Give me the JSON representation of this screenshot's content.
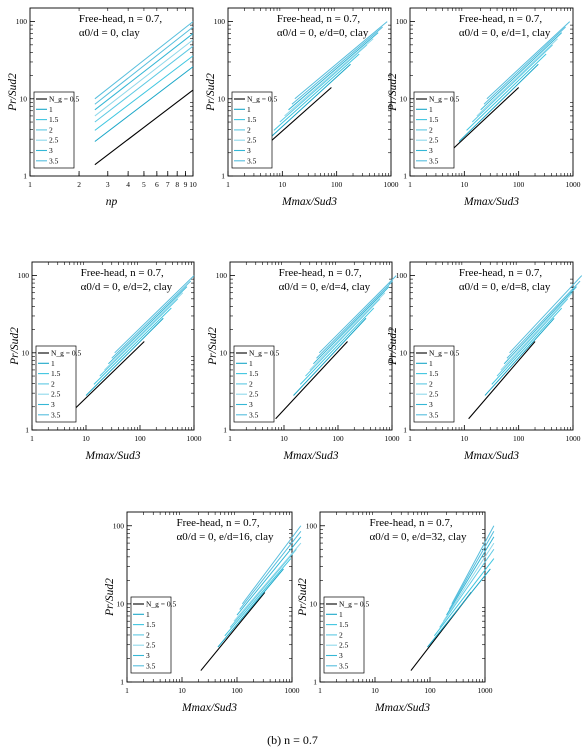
{
  "caption": "(b)   n = 0.7",
  "colors": {
    "axes": "#000000",
    "series": [
      "#000000",
      "#1aa7c8",
      "#3ec6e0",
      "#5dc9e3",
      "#8fd8ea",
      "#35b7d6",
      "#56bedd"
    ]
  },
  "legend_labels": [
    "N_g = 0.5",
    "1",
    "1.5",
    "2",
    "2.5",
    "3",
    "3.5"
  ],
  "chart_data": [
    {
      "type": "line",
      "xscale": "log",
      "yscale": "log",
      "xlim": [
        1,
        10
      ],
      "ylim": [
        1,
        150
      ],
      "xticks": [
        "1",
        "2",
        "3",
        "4",
        "5",
        "6",
        "7",
        "8",
        "9",
        "10"
      ],
      "yticks": [
        "1",
        "10",
        "100"
      ],
      "annotation": [
        "Free-head, n = 0.7,",
        "α0/d = 0, clay"
      ],
      "xlabel": "np",
      "ylabel": "Pr/Sud2",
      "legend": "left-middle",
      "series": [
        {
          "name": "0.5",
          "x": [
            2.5,
            10
          ],
          "y": [
            1.4,
            13
          ]
        },
        {
          "name": "1",
          "x": [
            2.5,
            10
          ],
          "y": [
            2.8,
            26
          ]
        },
        {
          "name": "1.5",
          "x": [
            2.5,
            10
          ],
          "y": [
            3.9,
            36
          ]
        },
        {
          "name": "2",
          "x": [
            2.5,
            10
          ],
          "y": [
            5.0,
            48
          ]
        },
        {
          "name": "2.5",
          "x": [
            2.5,
            10
          ],
          "y": [
            6.0,
            58
          ]
        },
        {
          "name": "3",
          "x": [
            2.5,
            10
          ],
          "y": [
            7.2,
            70
          ]
        },
        {
          "name": "3.5",
          "x": [
            2.5,
            10
          ],
          "y": [
            8.5,
            85
          ]
        },
        {
          "name": "",
          "x": [
            2.5,
            10
          ],
          "y": [
            10,
            100
          ]
        }
      ]
    },
    {
      "type": "line",
      "xscale": "log",
      "yscale": "log",
      "xlim": [
        1,
        1000
      ],
      "ylim": [
        1,
        150
      ],
      "xticks": [
        "1",
        "10",
        "100",
        "1000"
      ],
      "yticks": [
        "1",
        "10",
        "100"
      ],
      "annotation": [
        "Free-head, n = 0.7,",
        "α0/d = 0, e/d=0, clay"
      ],
      "xlabel": "Mmax/Sud3",
      "ylabel": "Pr/Sud2",
      "legend": "left-middle",
      "series": [
        {
          "name": "0.5",
          "x": [
            2,
            80
          ],
          "y": [
            1.4,
            14
          ]
        },
        {
          "name": "1",
          "x": [
            5,
            180
          ],
          "y": [
            2.8,
            28
          ]
        },
        {
          "name": "1.5",
          "x": [
            7,
            260
          ],
          "y": [
            3.9,
            38
          ]
        },
        {
          "name": "2",
          "x": [
            9,
            360
          ],
          "y": [
            5.0,
            50
          ]
        },
        {
          "name": "2.5",
          "x": [
            11,
            470
          ],
          "y": [
            6.0,
            60
          ]
        },
        {
          "name": "3",
          "x": [
            13,
            580
          ],
          "y": [
            7.2,
            72
          ]
        },
        {
          "name": "3.5",
          "x": [
            15,
            700
          ],
          "y": [
            8.5,
            85
          ]
        },
        {
          "name": "",
          "x": [
            17,
            850
          ],
          "y": [
            10,
            100
          ]
        }
      ]
    },
    {
      "type": "line",
      "xscale": "log",
      "yscale": "log",
      "xlim": [
        1,
        1000
      ],
      "ylim": [
        1,
        150
      ],
      "xticks": [
        "1",
        "10",
        "100",
        "1000"
      ],
      "yticks": [
        "1",
        "10",
        "100"
      ],
      "annotation": [
        "Free-head, n = 0.7,",
        "α0/d = 0, e/d=1, clay"
      ],
      "xlabel": "Mmax/Sud3",
      "ylabel": "Pr/Sud2",
      "legend": "left-middle",
      "series": [
        {
          "name": "0.5",
          "x": [
            3,
            100
          ],
          "y": [
            1.4,
            14
          ]
        },
        {
          "name": "1",
          "x": [
            8,
            230
          ],
          "y": [
            2.8,
            28
          ]
        },
        {
          "name": "1.5",
          "x": [
            11,
            320
          ],
          "y": [
            3.9,
            38
          ]
        },
        {
          "name": "2",
          "x": [
            14,
            420
          ],
          "y": [
            5.0,
            50
          ]
        },
        {
          "name": "2.5",
          "x": [
            17,
            520
          ],
          "y": [
            6.0,
            60
          ]
        },
        {
          "name": "3",
          "x": [
            20,
            620
          ],
          "y": [
            7.2,
            72
          ]
        },
        {
          "name": "3.5",
          "x": [
            23,
            730
          ],
          "y": [
            8.5,
            85
          ]
        },
        {
          "name": "",
          "x": [
            26,
            870
          ],
          "y": [
            10,
            100
          ]
        }
      ]
    },
    {
      "type": "line",
      "xscale": "log",
      "yscale": "log",
      "xlim": [
        1,
        1000
      ],
      "ylim": [
        1,
        150
      ],
      "xticks": [
        "1",
        "10",
        "100",
        "1000"
      ],
      "yticks": [
        "1",
        "10",
        "100"
      ],
      "annotation": [
        "Free-head, n = 0.7,",
        "α0/d = 0, e/d=2, clay"
      ],
      "xlabel": "Mmax/Sud3",
      "ylabel": "Pr/Sud2",
      "legend": "left-middle",
      "series": [
        {
          "name": "0.5",
          "x": [
            4,
            120
          ],
          "y": [
            1.4,
            14
          ]
        },
        {
          "name": "1",
          "x": [
            10,
            270
          ],
          "y": [
            2.8,
            28
          ]
        },
        {
          "name": "1.5",
          "x": [
            14,
            380
          ],
          "y": [
            3.9,
            38
          ]
        },
        {
          "name": "2",
          "x": [
            18,
            500
          ],
          "y": [
            5.0,
            50
          ]
        },
        {
          "name": "2.5",
          "x": [
            22,
            620
          ],
          "y": [
            6.0,
            60
          ]
        },
        {
          "name": "3",
          "x": [
            26,
            740
          ],
          "y": [
            7.2,
            72
          ]
        },
        {
          "name": "3.5",
          "x": [
            30,
            870
          ],
          "y": [
            8.5,
            85
          ]
        },
        {
          "name": "",
          "x": [
            34,
            1000
          ],
          "y": [
            10,
            100
          ]
        }
      ]
    },
    {
      "type": "line",
      "xscale": "log",
      "yscale": "log",
      "xlim": [
        1,
        1000
      ],
      "ylim": [
        1,
        150
      ],
      "xticks": [
        "1",
        "10",
        "100",
        "1000"
      ],
      "yticks": [
        "1",
        "10",
        "100"
      ],
      "annotation": [
        "Free-head, n = 0.7,",
        "α0/d = 0, e/d=4, clay"
      ],
      "xlabel": "Mmax/Sud3",
      "ylabel": "Pr/Sud2",
      "legend": "left-middle",
      "series": [
        {
          "name": "0.5",
          "x": [
            7,
            150
          ],
          "y": [
            1.4,
            14
          ]
        },
        {
          "name": "1",
          "x": [
            15,
            330
          ],
          "y": [
            2.8,
            28
          ]
        },
        {
          "name": "1.5",
          "x": [
            20,
            460
          ],
          "y": [
            3.9,
            38
          ]
        },
        {
          "name": "2",
          "x": [
            25,
            600
          ],
          "y": [
            5.0,
            50
          ]
        },
        {
          "name": "2.5",
          "x": [
            30,
            740
          ],
          "y": [
            6.0,
            60
          ]
        },
        {
          "name": "3",
          "x": [
            35,
            880
          ],
          "y": [
            7.2,
            72
          ]
        },
        {
          "name": "3.5",
          "x": [
            40,
            1030
          ],
          "y": [
            8.5,
            85
          ]
        },
        {
          "name": "",
          "x": [
            45,
            1200
          ],
          "y": [
            10,
            100
          ]
        }
      ]
    },
    {
      "type": "line",
      "xscale": "log",
      "yscale": "log",
      "xlim": [
        1,
        1000
      ],
      "ylim": [
        1,
        150
      ],
      "xticks": [
        "1",
        "10",
        "100",
        "1000"
      ],
      "yticks": [
        "1",
        "10",
        "100"
      ],
      "annotation": [
        "Free-head, n = 0.7,",
        "α0/d = 0, e/d=8, clay"
      ],
      "xlabel": "Mmax/Sud3",
      "ylabel": "Pr/Sud2",
      "legend": "left-middle",
      "series": [
        {
          "name": "0.5",
          "x": [
            12,
            200
          ],
          "y": [
            1.4,
            14
          ]
        },
        {
          "name": "1",
          "x": [
            24,
            450
          ],
          "y": [
            2.8,
            28
          ]
        },
        {
          "name": "1.5",
          "x": [
            32,
            620
          ],
          "y": [
            3.9,
            38
          ]
        },
        {
          "name": "2",
          "x": [
            40,
            800
          ],
          "y": [
            5.0,
            50
          ]
        },
        {
          "name": "2.5",
          "x": [
            47,
            980
          ],
          "y": [
            6.0,
            60
          ]
        },
        {
          "name": "3",
          "x": [
            54,
            1160
          ],
          "y": [
            7.2,
            72
          ]
        },
        {
          "name": "3.5",
          "x": [
            61,
            1350
          ],
          "y": [
            8.5,
            85
          ]
        },
        {
          "name": "",
          "x": [
            68,
            1550
          ],
          "y": [
            10,
            100
          ]
        }
      ]
    },
    {
      "type": "line",
      "xscale": "log",
      "yscale": "log",
      "xlim": [
        1,
        1000
      ],
      "ylim": [
        1,
        150
      ],
      "xticks": [
        "1",
        "10",
        "100",
        "1000"
      ],
      "yticks": [
        "1",
        "10",
        "100"
      ],
      "annotation": [
        "Free-head, n = 0.7,",
        "α0/d = 0, e/d=16, clay"
      ],
      "xlabel": "Mmax/Sud3",
      "ylabel": "Pr/Sud2",
      "legend": "left-middle",
      "series": [
        {
          "name": "0.5",
          "x": [
            22,
            320
          ],
          "y": [
            1.4,
            14
          ]
        },
        {
          "name": "1",
          "x": [
            45,
            700
          ],
          "y": [
            2.8,
            28
          ]
        },
        {
          "name": "1.5",
          "x": [
            60,
            950
          ],
          "y": [
            3.9,
            38
          ]
        },
        {
          "name": "2",
          "x": [
            75,
            1200
          ],
          "y": [
            5.0,
            50
          ]
        },
        {
          "name": "2.5",
          "x": [
            88,
            1450
          ],
          "y": [
            6.0,
            60
          ]
        },
        {
          "name": "3",
          "x": [
            100,
            1700
          ],
          "y": [
            7.2,
            72
          ]
        },
        {
          "name": "3.5",
          "x": [
            112,
            1950
          ],
          "y": [
            8.5,
            85
          ]
        },
        {
          "name": "",
          "x": [
            125,
            2250
          ],
          "y": [
            10,
            100
          ]
        }
      ]
    },
    {
      "type": "line",
      "xscale": "log",
      "yscale": "log",
      "xlim": [
        1,
        1000
      ],
      "ylim": [
        1,
        150
      ],
      "xticks": [
        "1",
        "10",
        "100",
        "1000"
      ],
      "yticks": [
        "1",
        "10",
        "100"
      ],
      "annotation": [
        "Free-head, n = 0.7,",
        "α0/d = 0, e/d=32, clay"
      ],
      "xlabel": "Mmax/Sud3",
      "ylabel": "Pr/Sud2",
      "legend": "left-middle",
      "series": [
        {
          "name": "0.5",
          "x": [
            45,
            560
          ],
          "y": [
            1.4,
            14
          ]
        },
        {
          "name": "1",
          "x": [
            90,
            1250
          ],
          "y": [
            2.8,
            28
          ]
        },
        {
          "name": "1.5",
          "x": [
            120,
            1700
          ],
          "y": [
            3.9,
            38
          ]
        },
        {
          "name": "2",
          "x": [
            150,
            2150
          ],
          "y": [
            5.0,
            50
          ]
        },
        {
          "name": "2.5",
          "x": [
            175,
            2600
          ],
          "y": [
            6.0,
            60
          ]
        },
        {
          "name": "3",
          "x": [
            200,
            3000
          ],
          "y": [
            7.2,
            72
          ]
        },
        {
          "name": "3.5",
          "x": [
            225,
            3450
          ],
          "y": [
            8.5,
            85
          ]
        },
        {
          "name": "",
          "x": [
            250,
            3900
          ],
          "y": [
            10,
            100
          ]
        }
      ]
    }
  ]
}
